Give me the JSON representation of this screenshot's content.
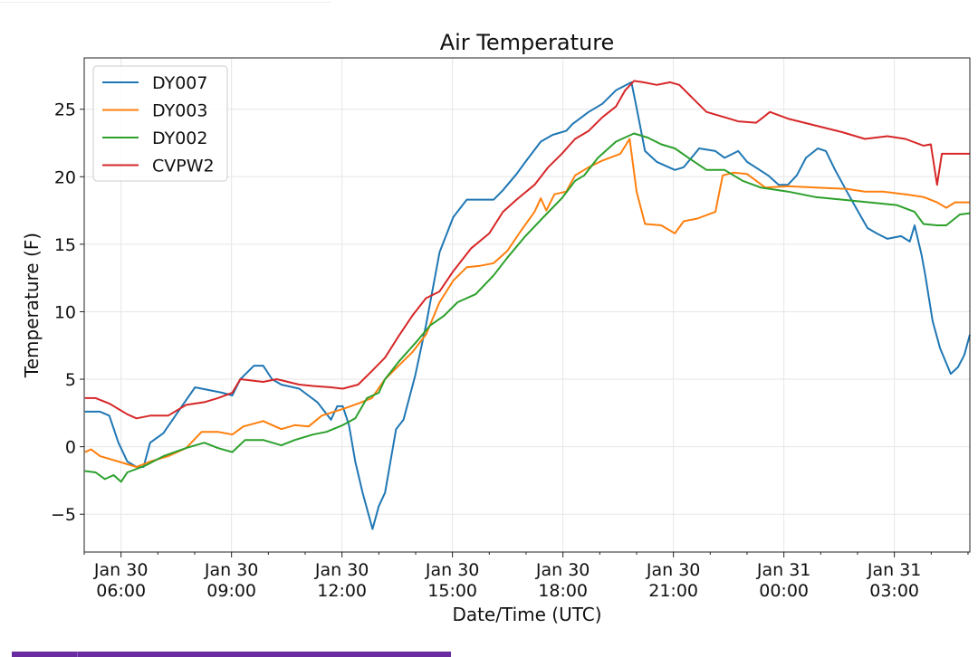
{
  "chart_data": {
    "type": "line",
    "title": "Air Temperature",
    "xlabel": "Date/Time (UTC)",
    "ylabel": "Temperature (F)",
    "x_units": "hours since Jan 30 00:00 UTC",
    "xlim": [
      5.0,
      29.05
    ],
    "ylim": [
      -7.8,
      28.8
    ],
    "grid": true,
    "legend_position": "top-left",
    "yticks": [
      -5,
      0,
      5,
      10,
      15,
      20,
      25
    ],
    "ytick_labels": [
      "−5",
      "0",
      "5",
      "10",
      "15",
      "20",
      "25"
    ],
    "xticks": [
      {
        "value": 6,
        "date": "Jan 30",
        "time": "06:00"
      },
      {
        "value": 9,
        "date": "Jan 30",
        "time": "09:00"
      },
      {
        "value": 12,
        "date": "Jan 30",
        "time": "12:00"
      },
      {
        "value": 15,
        "date": "Jan 30",
        "time": "15:00"
      },
      {
        "value": 18,
        "date": "Jan 30",
        "time": "18:00"
      },
      {
        "value": 21,
        "date": "Jan 30",
        "time": "21:00"
      },
      {
        "value": 24,
        "date": "Jan 31",
        "time": "00:00"
      },
      {
        "value": 27,
        "date": "Jan 31",
        "time": "03:00"
      }
    ],
    "series": [
      {
        "name": "DY007",
        "color": "#1f77b4",
        "points": [
          [
            5.02,
            2.6
          ],
          [
            5.43,
            2.6
          ],
          [
            5.68,
            2.3
          ],
          [
            5.93,
            0.3
          ],
          [
            6.17,
            -1.1
          ],
          [
            6.42,
            -1.5
          ],
          [
            6.61,
            -1.5
          ],
          [
            6.79,
            0.3
          ],
          [
            7.15,
            1.0
          ],
          [
            7.65,
            3.0
          ],
          [
            8.01,
            4.4
          ],
          [
            8.38,
            4.2
          ],
          [
            8.75,
            4.0
          ],
          [
            9.02,
            3.8
          ],
          [
            9.24,
            5.0
          ],
          [
            9.61,
            6.0
          ],
          [
            9.86,
            6.0
          ],
          [
            10.1,
            5.0
          ],
          [
            10.35,
            4.6
          ],
          [
            10.84,
            4.3
          ],
          [
            11.33,
            3.3
          ],
          [
            11.7,
            2.0
          ],
          [
            11.87,
            3.0
          ],
          [
            12.02,
            3.0
          ],
          [
            12.19,
            1.6
          ],
          [
            12.36,
            -1.1
          ],
          [
            12.56,
            -3.4
          ],
          [
            12.83,
            -6.1
          ],
          [
            13.0,
            -4.4
          ],
          [
            13.17,
            -3.4
          ],
          [
            13.47,
            1.3
          ],
          [
            13.67,
            2.0
          ],
          [
            13.99,
            5.3
          ],
          [
            14.28,
            9.0
          ],
          [
            14.65,
            14.4
          ],
          [
            15.02,
            17.0
          ],
          [
            15.39,
            18.3
          ],
          [
            16.12,
            18.3
          ],
          [
            16.37,
            19.0
          ],
          [
            16.74,
            20.2
          ],
          [
            16.98,
            21.1
          ],
          [
            17.4,
            22.6
          ],
          [
            17.72,
            23.1
          ],
          [
            18.09,
            23.4
          ],
          [
            18.26,
            23.9
          ],
          [
            18.7,
            24.8
          ],
          [
            19.07,
            25.4
          ],
          [
            19.44,
            26.4
          ],
          [
            19.86,
            27.0
          ],
          [
            20.0,
            25.1
          ],
          [
            20.23,
            21.9
          ],
          [
            20.55,
            21.1
          ],
          [
            21.04,
            20.5
          ],
          [
            21.28,
            20.7
          ],
          [
            21.7,
            22.1
          ],
          [
            22.14,
            21.9
          ],
          [
            22.39,
            21.4
          ],
          [
            22.76,
            21.9
          ],
          [
            23.0,
            21.1
          ],
          [
            23.57,
            20.1
          ],
          [
            23.86,
            19.4
          ],
          [
            24.11,
            19.4
          ],
          [
            24.35,
            20.1
          ],
          [
            24.6,
            21.4
          ],
          [
            24.92,
            22.1
          ],
          [
            25.14,
            21.9
          ],
          [
            25.39,
            20.5
          ],
          [
            25.71,
            18.9
          ],
          [
            26.02,
            17.4
          ],
          [
            26.27,
            16.2
          ],
          [
            26.52,
            15.8
          ],
          [
            26.81,
            15.4
          ],
          [
            27.18,
            15.6
          ],
          [
            27.42,
            15.2
          ],
          [
            27.55,
            16.4
          ],
          [
            27.74,
            14.2
          ],
          [
            27.84,
            12.7
          ],
          [
            28.04,
            9.3
          ],
          [
            28.24,
            7.3
          ],
          [
            28.53,
            5.4
          ],
          [
            28.73,
            5.9
          ],
          [
            28.9,
            6.8
          ],
          [
            29.05,
            8.3
          ]
        ]
      },
      {
        "name": "DY003",
        "color": "#ff7f0e",
        "points": [
          [
            5.02,
            -0.4
          ],
          [
            5.19,
            -0.2
          ],
          [
            5.43,
            -0.7
          ],
          [
            5.93,
            -1.1
          ],
          [
            6.42,
            -1.5
          ],
          [
            6.79,
            -1.1
          ],
          [
            7.28,
            -0.7
          ],
          [
            7.77,
            -0.1
          ],
          [
            8.19,
            1.1
          ],
          [
            8.63,
            1.1
          ],
          [
            9.02,
            0.9
          ],
          [
            9.32,
            1.5
          ],
          [
            9.86,
            1.9
          ],
          [
            10.35,
            1.3
          ],
          [
            10.72,
            1.6
          ],
          [
            11.09,
            1.5
          ],
          [
            11.45,
            2.3
          ],
          [
            12.02,
            2.8
          ],
          [
            12.44,
            3.2
          ],
          [
            12.81,
            3.6
          ],
          [
            13.17,
            5.0
          ],
          [
            13.54,
            6.0
          ],
          [
            13.91,
            7.0
          ],
          [
            14.28,
            8.3
          ],
          [
            14.65,
            10.7
          ],
          [
            15.02,
            12.3
          ],
          [
            15.39,
            13.3
          ],
          [
            15.75,
            13.4
          ],
          [
            16.12,
            13.6
          ],
          [
            16.49,
            14.5
          ],
          [
            16.86,
            16.0
          ],
          [
            17.23,
            17.4
          ],
          [
            17.4,
            18.4
          ],
          [
            17.55,
            17.5
          ],
          [
            17.77,
            18.7
          ],
          [
            18.09,
            18.9
          ],
          [
            18.33,
            20.1
          ],
          [
            18.7,
            20.7
          ],
          [
            19.07,
            21.2
          ],
          [
            19.56,
            21.7
          ],
          [
            19.81,
            22.8
          ],
          [
            20.0,
            18.9
          ],
          [
            20.23,
            16.5
          ],
          [
            20.67,
            16.4
          ],
          [
            21.04,
            15.8
          ],
          [
            21.28,
            16.7
          ],
          [
            21.65,
            16.9
          ],
          [
            22.14,
            17.4
          ],
          [
            22.34,
            20.1
          ],
          [
            22.63,
            20.3
          ],
          [
            23.0,
            20.2
          ],
          [
            23.25,
            19.7
          ],
          [
            23.49,
            19.2
          ],
          [
            24.11,
            19.3
          ],
          [
            24.85,
            19.2
          ],
          [
            25.71,
            19.1
          ],
          [
            26.2,
            18.9
          ],
          [
            26.69,
            18.9
          ],
          [
            27.3,
            18.7
          ],
          [
            27.79,
            18.5
          ],
          [
            28.16,
            18.1
          ],
          [
            28.41,
            17.7
          ],
          [
            28.65,
            18.1
          ],
          [
            29.05,
            18.1
          ]
        ]
      },
      {
        "name": "DY002",
        "color": "#2ca02c",
        "points": [
          [
            5.02,
            -1.8
          ],
          [
            5.31,
            -1.9
          ],
          [
            5.56,
            -2.4
          ],
          [
            5.8,
            -2.1
          ],
          [
            6.0,
            -2.6
          ],
          [
            6.17,
            -1.9
          ],
          [
            6.66,
            -1.4
          ],
          [
            7.15,
            -0.7
          ],
          [
            7.77,
            -0.1
          ],
          [
            8.26,
            0.3
          ],
          [
            8.63,
            -0.1
          ],
          [
            9.02,
            -0.4
          ],
          [
            9.37,
            0.5
          ],
          [
            9.86,
            0.5
          ],
          [
            10.35,
            0.1
          ],
          [
            10.72,
            0.5
          ],
          [
            11.21,
            0.9
          ],
          [
            11.58,
            1.1
          ],
          [
            12.02,
            1.6
          ],
          [
            12.36,
            2.1
          ],
          [
            12.68,
            3.6
          ],
          [
            13.0,
            4.0
          ],
          [
            13.17,
            5.0
          ],
          [
            13.54,
            6.3
          ],
          [
            14.03,
            7.8
          ],
          [
            14.4,
            9.0
          ],
          [
            14.77,
            9.7
          ],
          [
            15.14,
            10.7
          ],
          [
            15.63,
            11.3
          ],
          [
            16.12,
            12.7
          ],
          [
            16.49,
            14.0
          ],
          [
            16.98,
            15.6
          ],
          [
            17.47,
            17.0
          ],
          [
            17.97,
            18.4
          ],
          [
            18.33,
            19.7
          ],
          [
            18.58,
            20.1
          ],
          [
            18.95,
            21.4
          ],
          [
            19.44,
            22.6
          ],
          [
            19.93,
            23.2
          ],
          [
            20.3,
            22.9
          ],
          [
            20.67,
            22.4
          ],
          [
            21.04,
            22.1
          ],
          [
            21.41,
            21.4
          ],
          [
            21.9,
            20.5
          ],
          [
            22.39,
            20.5
          ],
          [
            22.88,
            19.7
          ],
          [
            23.37,
            19.2
          ],
          [
            24.11,
            18.9
          ],
          [
            24.85,
            18.5
          ],
          [
            25.58,
            18.3
          ],
          [
            26.32,
            18.1
          ],
          [
            27.06,
            17.9
          ],
          [
            27.55,
            17.4
          ],
          [
            27.79,
            16.5
          ],
          [
            28.16,
            16.4
          ],
          [
            28.41,
            16.4
          ],
          [
            28.78,
            17.2
          ],
          [
            29.05,
            17.3
          ]
        ]
      },
      {
        "name": "CVPW2",
        "color": "#d62728",
        "points": [
          [
            5.02,
            3.6
          ],
          [
            5.31,
            3.6
          ],
          [
            5.68,
            3.2
          ],
          [
            6.17,
            2.4
          ],
          [
            6.42,
            2.1
          ],
          [
            6.79,
            2.3
          ],
          [
            7.28,
            2.3
          ],
          [
            7.77,
            3.1
          ],
          [
            8.26,
            3.3
          ],
          [
            8.63,
            3.6
          ],
          [
            9.02,
            4.0
          ],
          [
            9.24,
            5.0
          ],
          [
            9.86,
            4.8
          ],
          [
            10.23,
            5.0
          ],
          [
            10.84,
            4.6
          ],
          [
            11.21,
            4.5
          ],
          [
            11.7,
            4.4
          ],
          [
            12.02,
            4.3
          ],
          [
            12.44,
            4.6
          ],
          [
            12.81,
            5.6
          ],
          [
            13.17,
            6.6
          ],
          [
            13.54,
            8.2
          ],
          [
            13.91,
            9.7
          ],
          [
            14.28,
            11.0
          ],
          [
            14.65,
            11.5
          ],
          [
            15.02,
            13.0
          ],
          [
            15.51,
            14.7
          ],
          [
            16.0,
            15.8
          ],
          [
            16.37,
            17.4
          ],
          [
            16.74,
            18.3
          ],
          [
            17.23,
            19.4
          ],
          [
            17.6,
            20.7
          ],
          [
            17.97,
            21.7
          ],
          [
            18.33,
            22.8
          ],
          [
            18.7,
            23.4
          ],
          [
            19.07,
            24.4
          ],
          [
            19.44,
            25.2
          ],
          [
            19.69,
            26.4
          ],
          [
            19.93,
            27.1
          ],
          [
            20.18,
            27.0
          ],
          [
            20.55,
            26.8
          ],
          [
            20.91,
            27.0
          ],
          [
            21.16,
            26.8
          ],
          [
            21.53,
            25.8
          ],
          [
            21.9,
            24.8
          ],
          [
            22.39,
            24.4
          ],
          [
            22.76,
            24.1
          ],
          [
            23.25,
            24.0
          ],
          [
            23.44,
            24.4
          ],
          [
            23.62,
            24.8
          ],
          [
            24.11,
            24.3
          ],
          [
            24.85,
            23.8
          ],
          [
            25.58,
            23.3
          ],
          [
            26.2,
            22.8
          ],
          [
            26.81,
            23.0
          ],
          [
            27.3,
            22.8
          ],
          [
            27.79,
            22.3
          ],
          [
            27.99,
            22.4
          ],
          [
            28.16,
            19.4
          ],
          [
            28.29,
            21.7
          ],
          [
            29.05,
            21.7
          ]
        ]
      }
    ]
  }
}
